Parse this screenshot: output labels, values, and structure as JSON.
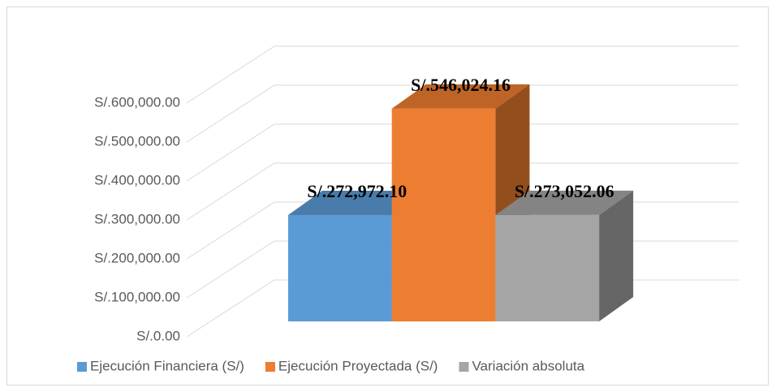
{
  "chart_data": {
    "type": "bar3d",
    "series": [
      {
        "name": "Ejecución Financiera (S/)",
        "color": "#5b9bd5",
        "values": [
          272972.1
        ],
        "value_labels": [
          "S/.272,972.10"
        ]
      },
      {
        "name": "Ejecución Proyectada (S/)",
        "color": "#ed7d31",
        "values": [
          546024.16
        ],
        "value_labels": [
          "S/.546,024.16"
        ]
      },
      {
        "name": "Variación absoluta",
        "color": "#a5a5a5",
        "values": [
          273052.06
        ],
        "value_labels": [
          "S/.273,052.06"
        ]
      }
    ],
    "ylim": [
      0,
      600000
    ],
    "yticks": [
      {
        "value": 0,
        "label": "S/.0.00"
      },
      {
        "value": 100000,
        "label": "S/.100,000.00"
      },
      {
        "value": 200000,
        "label": "S/.200,000.00"
      },
      {
        "value": 300000,
        "label": "S/.300,000.00"
      },
      {
        "value": 400000,
        "label": "S/.400,000.00"
      },
      {
        "value": 500000,
        "label": "S/.500,000.00"
      },
      {
        "value": 600000,
        "label": "S/.600,000.00"
      }
    ],
    "grid": true,
    "legend": "bottom"
  }
}
